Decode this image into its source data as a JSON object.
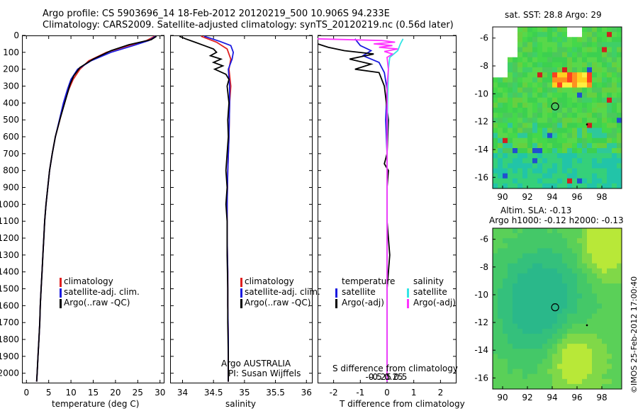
{
  "title_line1": "Argo profile: CS 5903696_14 18-Feb-2012 20120219_500 10.906S 94.233E",
  "title_line2": "Climatology: CARS2009. Satellite-adjusted climatology: synTS_20120219.nc (0.56d later)",
  "colors": {
    "climatology": "#e02020",
    "satellite": "#1a1ae0",
    "argo": "#000000",
    "satellite_s": "#33e5e5",
    "argo_s": "#ff33ff"
  },
  "chart_data": [
    {
      "type": "line",
      "id": "temperature",
      "xlabel": "temperature (deg C)",
      "ylabel": "",
      "xlim": [
        -1,
        31
      ],
      "ylim": [
        2060,
        0
      ],
      "xticks": [
        0,
        5,
        10,
        15,
        20,
        25,
        30
      ],
      "yticks": [
        0,
        100,
        200,
        300,
        400,
        500,
        600,
        700,
        800,
        900,
        1000,
        1100,
        1200,
        1300,
        1400,
        1500,
        1600,
        1700,
        1800,
        1900,
        2000
      ],
      "legend": [
        "climatology",
        "satellite-adj. clim.",
        "Argo(..raw -QC)"
      ],
      "series": [
        {
          "name": "climatology",
          "color_key": "climatology",
          "points": [
            [
              28.8,
              5
            ],
            [
              27,
              30
            ],
            [
              23,
              60
            ],
            [
              18,
              100
            ],
            [
              14,
              150
            ],
            [
              12,
              200
            ],
            [
              10.5,
              260
            ],
            [
              9.5,
              320
            ],
            [
              8.5,
              400
            ],
            [
              7.5,
              500
            ],
            [
              6.5,
              600
            ],
            [
              5.8,
              700
            ],
            [
              5.2,
              800
            ],
            [
              4.8,
              900
            ],
            [
              4.4,
              1000
            ],
            [
              4.1,
              1100
            ],
            [
              3.9,
              1200
            ],
            [
              3.7,
              1300
            ],
            [
              3.5,
              1400
            ],
            [
              3.3,
              1500
            ],
            [
              3.1,
              1600
            ],
            [
              3,
              1700
            ],
            [
              2.8,
              1800
            ],
            [
              2.6,
              1900
            ],
            [
              2.4,
              2000
            ],
            [
              2.3,
              2050
            ]
          ]
        },
        {
          "name": "satellite-adj. clim.",
          "color_key": "satellite",
          "points": [
            [
              29,
              5
            ],
            [
              27.5,
              30
            ],
            [
              24,
              60
            ],
            [
              19,
              100
            ],
            [
              14.5,
              150
            ],
            [
              11.5,
              200
            ],
            [
              10,
              260
            ],
            [
              9.2,
              320
            ],
            [
              8.3,
              400
            ],
            [
              7.4,
              500
            ],
            [
              6.5,
              600
            ],
            [
              5.8,
              700
            ],
            [
              5.2,
              800
            ],
            [
              4.8,
              900
            ],
            [
              4.4,
              1000
            ],
            [
              4.1,
              1100
            ],
            [
              3.9,
              1200
            ],
            [
              3.7,
              1300
            ],
            [
              3.5,
              1400
            ],
            [
              3.3,
              1500
            ],
            [
              3.1,
              1600
            ],
            [
              3,
              1700
            ],
            [
              2.8,
              1800
            ],
            [
              2.6,
              1900
            ],
            [
              2.4,
              2000
            ],
            [
              2.3,
              2050
            ]
          ]
        },
        {
          "name": "Argo(..raw -QC)",
          "color_key": "argo",
          "points": [
            [
              29.2,
              5
            ],
            [
              28,
              25
            ],
            [
              23,
              55
            ],
            [
              19,
              90
            ],
            [
              15,
              140
            ],
            [
              12,
              190
            ],
            [
              10.6,
              240
            ],
            [
              9.8,
              290
            ],
            [
              8.8,
              380
            ],
            [
              7.6,
              490
            ],
            [
              6.5,
              600
            ],
            [
              5.8,
              700
            ],
            [
              5.2,
              800
            ],
            [
              4.8,
              900
            ],
            [
              4.4,
              1000
            ],
            [
              4.1,
              1100
            ],
            [
              3.9,
              1200
            ],
            [
              3.7,
              1300
            ],
            [
              3.5,
              1400
            ],
            [
              3.3,
              1500
            ],
            [
              3.1,
              1600
            ],
            [
              3,
              1700
            ],
            [
              2.8,
              1800
            ],
            [
              2.6,
              1900
            ],
            [
              2.4,
              2000
            ],
            [
              2.3,
              2050
            ]
          ]
        }
      ]
    },
    {
      "type": "line",
      "id": "salinity",
      "xlabel": "salinity",
      "xlim": [
        33.8,
        36.1
      ],
      "ylim": [
        2060,
        0
      ],
      "xticks": [
        34,
        34.5,
        35,
        35.5,
        36
      ],
      "legend": [
        "climatology",
        "satellite-adj. clim.",
        "Argo(..raw -QC)"
      ],
      "annotation": [
        "Argo AUSTRALIA",
        "PI: Susan Wijffels"
      ],
      "series": [
        {
          "name": "climatology",
          "color_key": "climatology",
          "points": [
            [
              34.3,
              5
            ],
            [
              34.55,
              40
            ],
            [
              34.72,
              80
            ],
            [
              34.78,
              140
            ],
            [
              34.75,
              200
            ],
            [
              34.78,
              300
            ],
            [
              34.76,
              400
            ],
            [
              34.75,
              600
            ],
            [
              34.73,
              800
            ],
            [
              34.72,
              1000
            ],
            [
              34.72,
              1200
            ],
            [
              34.73,
              1400
            ],
            [
              34.73,
              1600
            ],
            [
              34.74,
              1800
            ],
            [
              34.74,
              2000
            ],
            [
              34.74,
              2050
            ]
          ]
        },
        {
          "name": "satellite-adj. clim.",
          "color_key": "satellite",
          "points": [
            [
              34.35,
              5
            ],
            [
              34.6,
              35
            ],
            [
              34.78,
              60
            ],
            [
              34.82,
              100
            ],
            [
              34.8,
              140
            ],
            [
              34.74,
              200
            ],
            [
              34.76,
              300
            ],
            [
              34.76,
              400
            ],
            [
              34.75,
              600
            ],
            [
              34.73,
              800
            ],
            [
              34.72,
              1000
            ],
            [
              34.72,
              1200
            ],
            [
              34.73,
              1400
            ],
            [
              34.73,
              1600
            ],
            [
              34.74,
              1800
            ],
            [
              34.74,
              2000
            ],
            [
              34.74,
              2050
            ]
          ]
        },
        {
          "name": "Argo(..raw -QC)",
          "color_key": "argo",
          "points": [
            [
              33.95,
              5
            ],
            [
              34.05,
              20
            ],
            [
              34.2,
              40
            ],
            [
              34.35,
              60
            ],
            [
              34.5,
              80
            ],
            [
              34.55,
              100
            ],
            [
              34.45,
              120
            ],
            [
              34.62,
              140
            ],
            [
              34.5,
              160
            ],
            [
              34.65,
              180
            ],
            [
              34.52,
              200
            ],
            [
              34.7,
              230
            ],
            [
              34.75,
              260
            ],
            [
              34.72,
              300
            ],
            [
              34.75,
              400
            ],
            [
              34.73,
              500
            ],
            [
              34.74,
              600
            ],
            [
              34.72,
              700
            ],
            [
              34.7,
              800
            ],
            [
              34.72,
              900
            ],
            [
              34.7,
              1000
            ],
            [
              34.72,
              1100
            ],
            [
              34.72,
              1300
            ],
            [
              34.73,
              1500
            ],
            [
              34.73,
              1700
            ],
            [
              34.74,
              1900
            ],
            [
              34.74,
              2050
            ]
          ]
        }
      ]
    },
    {
      "type": "line",
      "id": "difference",
      "xlabel": "T difference from climatology",
      "x2label": "S difference from climatology",
      "xlim": [
        -2.6,
        2.6
      ],
      "ylim": [
        2060,
        0
      ],
      "xticks": [
        -2,
        -1,
        0,
        1,
        2
      ],
      "x2ticks": [
        -0.5,
        -0.25,
        0,
        0.25,
        0.5
      ],
      "legend_headers": [
        "temperature",
        "salinity"
      ],
      "legend": [
        "satellite",
        "Argo(-adj)",
        "satellite",
        "Argo(-adj)"
      ],
      "series": [
        {
          "name": "temperature satellite",
          "color_key": "satellite",
          "points": [
            [
              -1.2,
              20
            ],
            [
              -1,
              60
            ],
            [
              -0.6,
              90
            ],
            [
              -0.9,
              120
            ],
            [
              -0.3,
              160
            ],
            [
              -0.1,
              220
            ],
            [
              0,
              320
            ],
            [
              -0.05,
              500
            ],
            [
              0,
              700
            ],
            [
              0,
              1000
            ],
            [
              0,
              1500
            ],
            [
              0,
              2050
            ]
          ]
        },
        {
          "name": "temperature Argo(-adj)",
          "color_key": "argo",
          "points": [
            [
              -2.6,
              50
            ],
            [
              -2.2,
              70
            ],
            [
              -1.6,
              90
            ],
            [
              -0.5,
              110
            ],
            [
              -1.4,
              140
            ],
            [
              -0.6,
              170
            ],
            [
              -1.2,
              200
            ],
            [
              -0.3,
              220
            ],
            [
              -0.1,
              300
            ],
            [
              0.05,
              500
            ],
            [
              0,
              700
            ],
            [
              -0.1,
              760
            ],
            [
              0.05,
              800
            ],
            [
              0,
              900
            ],
            [
              0,
              1100
            ],
            [
              0.1,
              1300
            ],
            [
              0,
              1500
            ],
            [
              0,
              2050
            ]
          ]
        },
        {
          "name": "salinity satellite",
          "color_key": "satellite_s",
          "points": [
            [
              0.6,
              20
            ],
            [
              0.5,
              50
            ],
            [
              0.4,
              90
            ],
            [
              0.1,
              130
            ],
            [
              0.05,
              200
            ],
            [
              0.02,
              400
            ],
            [
              0,
              700
            ],
            [
              0,
              1000
            ],
            [
              0,
              1500
            ],
            [
              0,
              2050
            ]
          ]
        },
        {
          "name": "salinity Argo(-adj)",
          "color_key": "argo_s",
          "points": [
            [
              -2.6,
              20
            ],
            [
              -0.2,
              30
            ],
            [
              0.3,
              40
            ],
            [
              -0.5,
              50
            ],
            [
              0.2,
              60
            ],
            [
              -0.3,
              70
            ],
            [
              0.4,
              80
            ],
            [
              -0.1,
              95
            ],
            [
              0.2,
              110
            ],
            [
              0,
              130
            ],
            [
              0.05,
              200
            ],
            [
              0,
              300
            ],
            [
              0,
              600
            ],
            [
              0,
              1000
            ],
            [
              0,
              1500
            ],
            [
              0,
              2050
            ]
          ]
        }
      ]
    },
    {
      "type": "heatmap",
      "id": "sst_map",
      "title": "sat. SST: 28.8  Argo: 29",
      "xlim": [
        89.2,
        99.6
      ],
      "ylim": [
        -16.8,
        -5.2
      ],
      "xticks": [
        90,
        92,
        94,
        96,
        98
      ],
      "yticks": [
        -6,
        -8,
        -10,
        -12,
        -14,
        -16
      ],
      "markers": {
        "circle": [
          94.233,
          -10.906
        ],
        "dot": [
          96.8,
          -12.2
        ]
      }
    },
    {
      "type": "heatmap",
      "id": "sla_map",
      "title": "Altim. SLA: -0.13",
      "subtitle": "Argo h1000: -0.12 h2000: -0.13",
      "xlim": [
        89.2,
        99.6
      ],
      "ylim": [
        -16.8,
        -5.2
      ],
      "xticks": [
        90,
        92,
        94,
        96,
        98
      ],
      "yticks": [
        -6,
        -8,
        -10,
        -12,
        -14,
        -16
      ],
      "markers": {
        "circle": [
          94.233,
          -10.906
        ],
        "dot": [
          96.8,
          -12.2
        ]
      }
    }
  ],
  "watermark": "©IMOS 25-Feb-2012 17:00:40"
}
